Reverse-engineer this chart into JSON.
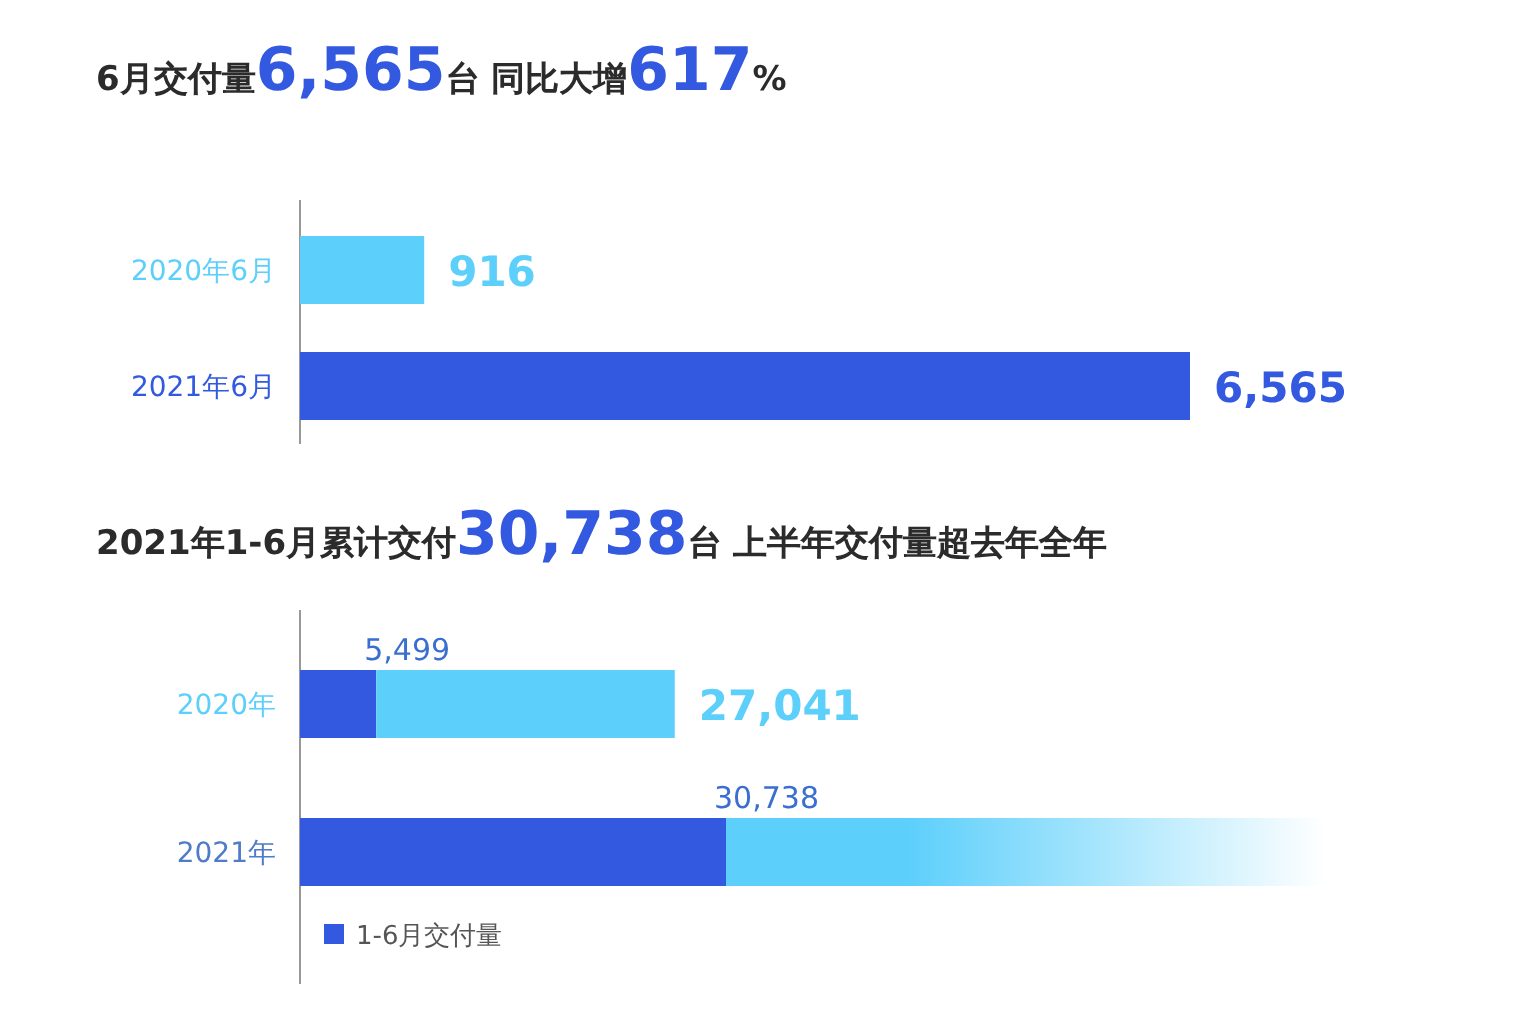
{
  "chart_data": [
    {
      "type": "bar",
      "orientation": "horizontal",
      "title": "6月交付量6,565台  同比大增617%",
      "categories": [
        "2020年6月",
        "2021年6月"
      ],
      "values": [
        916,
        6565
      ],
      "colors": [
        "#5ccffb",
        "#3359e0"
      ],
      "value_labels": [
        "916",
        "6,565"
      ]
    },
    {
      "type": "bar",
      "orientation": "horizontal",
      "stacked": true,
      "title": "2021年1-6月累计交付30,738台  上半年交付量超去年全年",
      "categories": [
        "2020年",
        "2021年"
      ],
      "series": [
        {
          "name": "1-6月交付量",
          "color": "#3359e0",
          "values": [
            5499,
            30738
          ],
          "value_labels": [
            "5,499",
            "30,738"
          ]
        },
        {
          "color": "#5ccffb",
          "values": [
            21542,
            null
          ]
        }
      ],
      "totals": [
        "27,041",
        null
      ],
      "legend": "bottom left"
    }
  ]
}
